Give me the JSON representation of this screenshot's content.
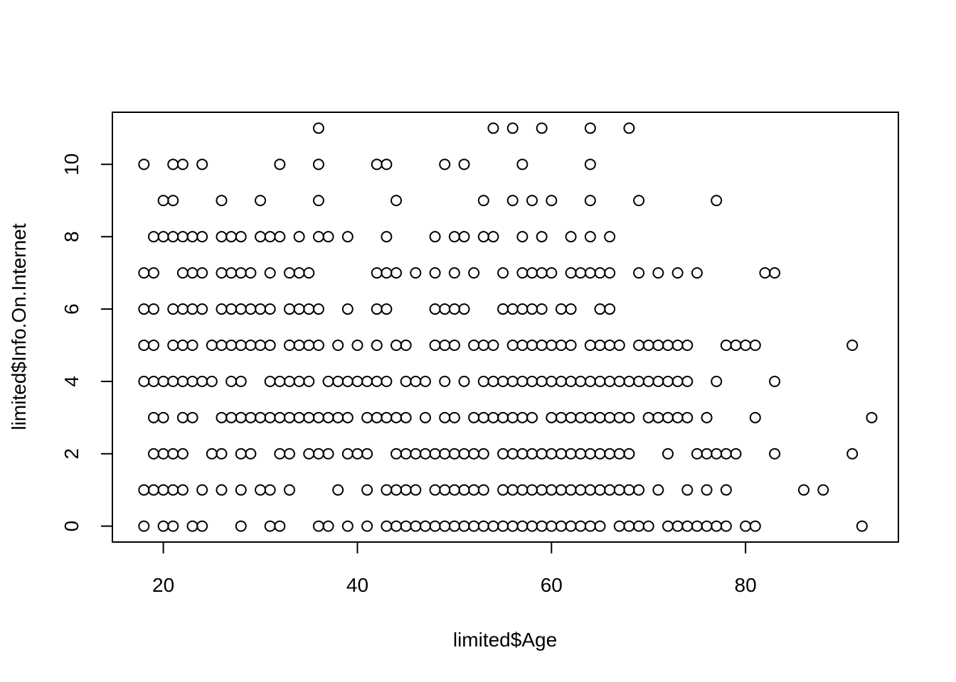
{
  "chart_data": {
    "type": "scatter",
    "xlabel": "limited$Age",
    "ylabel": "limited$Info.On.Internet",
    "xlim": [
      14.75,
      95.75
    ],
    "ylim": [
      -0.44,
      11.44
    ],
    "x_ticks": [
      20,
      40,
      60,
      80
    ],
    "y_ticks": [
      0,
      2,
      4,
      6,
      8,
      10
    ],
    "marker": "open-circle",
    "color": "#000000",
    "grid": false,
    "rows": [
      {
        "y": 11,
        "x": [
          36,
          54,
          56,
          59,
          64,
          68
        ]
      },
      {
        "y": 10,
        "x": [
          18,
          21,
          22,
          24,
          32,
          36,
          42,
          43,
          49,
          51,
          57,
          64
        ]
      },
      {
        "y": 9,
        "x": [
          20,
          21,
          26,
          30,
          36,
          44,
          53,
          56,
          58,
          60,
          64,
          69,
          77
        ]
      },
      {
        "y": 8,
        "x": [
          19,
          20,
          21,
          22,
          23,
          24,
          26,
          27,
          28,
          30,
          31,
          32,
          34,
          36,
          37,
          39,
          43,
          48,
          50,
          51,
          53,
          54,
          57,
          59,
          62,
          64,
          66
        ]
      },
      {
        "y": 7,
        "x": [
          18,
          19,
          22,
          23,
          24,
          26,
          27,
          28,
          29,
          31,
          33,
          34,
          35,
          42,
          43,
          44,
          46,
          48,
          50,
          52,
          55,
          57,
          58,
          59,
          60,
          62,
          63,
          64,
          65,
          66,
          69,
          71,
          73,
          75,
          82,
          83
        ]
      },
      {
        "y": 6,
        "x": [
          18,
          19,
          21,
          22,
          23,
          24,
          26,
          27,
          28,
          29,
          30,
          31,
          33,
          34,
          35,
          36,
          39,
          42,
          43,
          48,
          49,
          50,
          51,
          55,
          56,
          57,
          58,
          59,
          61,
          62,
          65,
          66
        ]
      },
      {
        "y": 5,
        "x": [
          18,
          19,
          21,
          22,
          23,
          25,
          26,
          27,
          28,
          29,
          30,
          31,
          33,
          34,
          35,
          36,
          38,
          40,
          42,
          44,
          45,
          48,
          49,
          50,
          52,
          53,
          54,
          56,
          57,
          58,
          59,
          60,
          61,
          62,
          64,
          65,
          66,
          67,
          69,
          70,
          71,
          72,
          73,
          74,
          78,
          79,
          80,
          81,
          91
        ]
      },
      {
        "y": 4,
        "x": [
          18,
          19,
          20,
          21,
          22,
          23,
          24,
          25,
          27,
          28,
          31,
          32,
          33,
          34,
          35,
          37,
          38,
          39,
          40,
          41,
          42,
          43,
          45,
          46,
          47,
          49,
          51,
          53,
          54,
          55,
          56,
          57,
          58,
          59,
          60,
          61,
          62,
          63,
          64,
          65,
          66,
          67,
          68,
          69,
          70,
          71,
          72,
          73,
          74,
          77,
          83
        ]
      },
      {
        "y": 3,
        "x": [
          19,
          20,
          22,
          23,
          26,
          27,
          28,
          29,
          30,
          31,
          32,
          33,
          34,
          35,
          36,
          37,
          38,
          39,
          41,
          42,
          43,
          44,
          45,
          47,
          49,
          50,
          52,
          53,
          54,
          55,
          56,
          57,
          58,
          60,
          61,
          62,
          63,
          64,
          65,
          66,
          67,
          68,
          70,
          71,
          72,
          73,
          74,
          76,
          81,
          93
        ]
      },
      {
        "y": 2,
        "x": [
          19,
          20,
          21,
          22,
          25,
          26,
          28,
          29,
          32,
          33,
          35,
          36,
          37,
          39,
          40,
          41,
          44,
          45,
          46,
          47,
          48,
          49,
          50,
          51,
          52,
          53,
          55,
          56,
          57,
          58,
          59,
          60,
          61,
          62,
          63,
          64,
          65,
          66,
          67,
          68,
          72,
          75,
          76,
          77,
          78,
          79,
          83,
          91
        ]
      },
      {
        "y": 1,
        "x": [
          18,
          19,
          20,
          21,
          22,
          24,
          26,
          28,
          30,
          31,
          33,
          38,
          41,
          43,
          44,
          45,
          46,
          48,
          49,
          50,
          51,
          52,
          53,
          55,
          56,
          57,
          58,
          59,
          60,
          61,
          62,
          63,
          64,
          65,
          66,
          67,
          68,
          69,
          71,
          74,
          76,
          78,
          86,
          88
        ]
      },
      {
        "y": 0,
        "x": [
          18,
          20,
          21,
          23,
          24,
          28,
          31,
          32,
          36,
          37,
          39,
          41,
          43,
          44,
          45,
          46,
          47,
          48,
          49,
          50,
          51,
          52,
          53,
          54,
          55,
          56,
          57,
          58,
          59,
          60,
          61,
          62,
          63,
          64,
          65,
          67,
          68,
          69,
          70,
          72,
          73,
          74,
          75,
          76,
          77,
          78,
          80,
          81,
          92
        ]
      }
    ]
  }
}
